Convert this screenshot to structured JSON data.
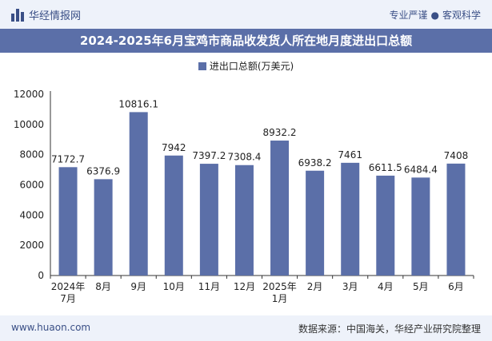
{
  "header": {
    "brand": "华经情报网",
    "tagline_left": "专业严谨",
    "tagline_sep": "●",
    "tagline_right": "客观科学"
  },
  "footer": {
    "site": "www.huaon.com",
    "source": "数据来源：中国海关，华经产业研究院整理"
  },
  "colors": {
    "bar": "#5b6fa8",
    "title_bg": "#5b6fa8",
    "band": "#eef2fa"
  },
  "chart_data": {
    "type": "bar",
    "title": "2024-2025年6月宝鸡市商品收发货人所在地月度进出口总额",
    "legend": [
      "进出口总额(万美元)"
    ],
    "categories": [
      "2024年\n7月",
      "8月",
      "9月",
      "10月",
      "11月",
      "12月",
      "2025年\n1月",
      "2月",
      "3月",
      "4月",
      "5月",
      "6月"
    ],
    "values": [
      7172.7,
      6376.9,
      10816.1,
      7942,
      7397.2,
      7308.4,
      8932.2,
      6938.2,
      7461,
      6611.5,
      6484.4,
      7408
    ],
    "value_labels": [
      "7172.7",
      "6376.9",
      "10816.1",
      "7942",
      "7397.2",
      "7308.4",
      "8932.2",
      "6938.2",
      "7461",
      "6611.5",
      "6484.4",
      "7408"
    ],
    "ylim": [
      0,
      12000
    ],
    "yticks": [
      0,
      2000,
      4000,
      6000,
      8000,
      10000,
      12000
    ],
    "xlabel": "",
    "ylabel": ""
  }
}
